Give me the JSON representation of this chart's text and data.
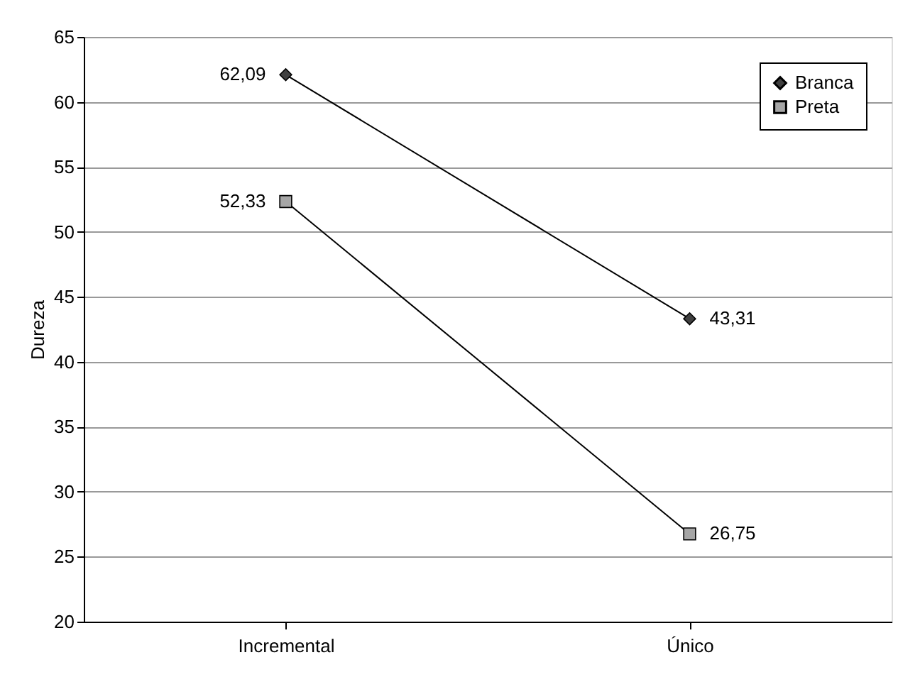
{
  "chart_data": {
    "type": "line",
    "ylabel": "Dureza",
    "categories": [
      "Incremental",
      "Único"
    ],
    "series": [
      {
        "name": "Branca",
        "color": "#404040",
        "marker": "diamond",
        "values": [
          62.09,
          43.31
        ],
        "value_labels": [
          "62,09",
          "43,31"
        ]
      },
      {
        "name": "Preta",
        "color": "#a6a6a6",
        "marker": "square",
        "values": [
          52.33,
          26.75
        ],
        "value_labels": [
          "52,33",
          "26,75"
        ]
      }
    ],
    "ylim": [
      20,
      65
    ],
    "yticks": [
      20,
      25,
      30,
      35,
      40,
      45,
      50,
      55,
      60,
      65
    ],
    "grid": "y",
    "legend": "top right",
    "line_style": "solid"
  }
}
